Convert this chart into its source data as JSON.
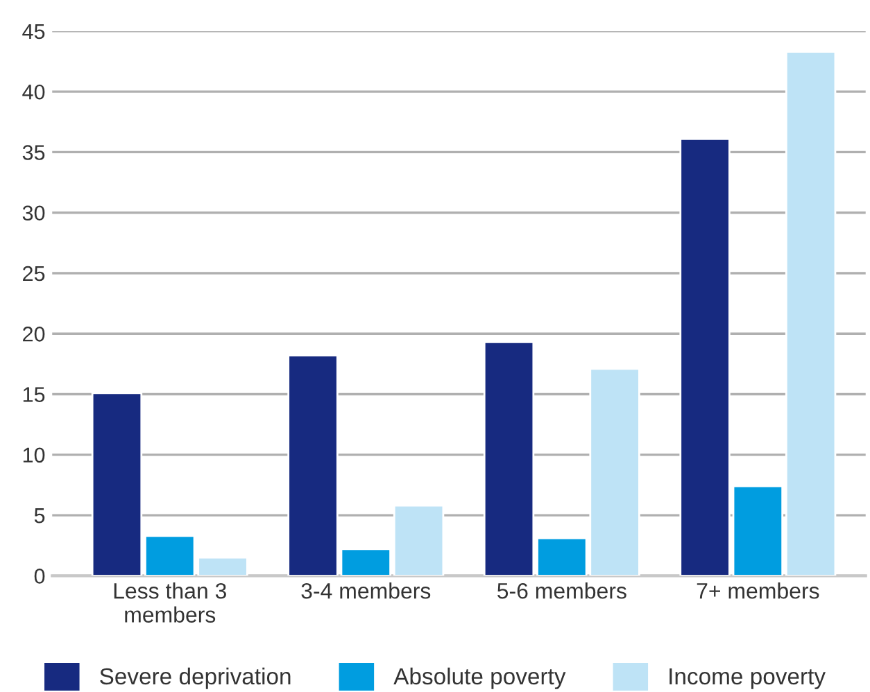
{
  "chart_data": {
    "type": "bar",
    "categories": [
      "Less than 3\nmembers",
      "3-4 members",
      "5-6 members",
      "7+ members"
    ],
    "series": [
      {
        "name": "Severe deprivation",
        "color": "#172a80",
        "values": [
          15.1,
          18.2,
          19.3,
          36.1
        ]
      },
      {
        "name": "Absolute poverty",
        "color": "#009de0",
        "values": [
          3.3,
          2.2,
          3.1,
          7.4
        ]
      },
      {
        "name": "Income poverty",
        "color": "#bee3f6",
        "values": [
          1.5,
          5.8,
          17.1,
          43.3
        ]
      }
    ],
    "ylim": [
      0,
      45
    ],
    "yticks": [
      0,
      5,
      10,
      15,
      20,
      25,
      30,
      35,
      40,
      45
    ],
    "grid": "y",
    "legend": "bottom"
  }
}
